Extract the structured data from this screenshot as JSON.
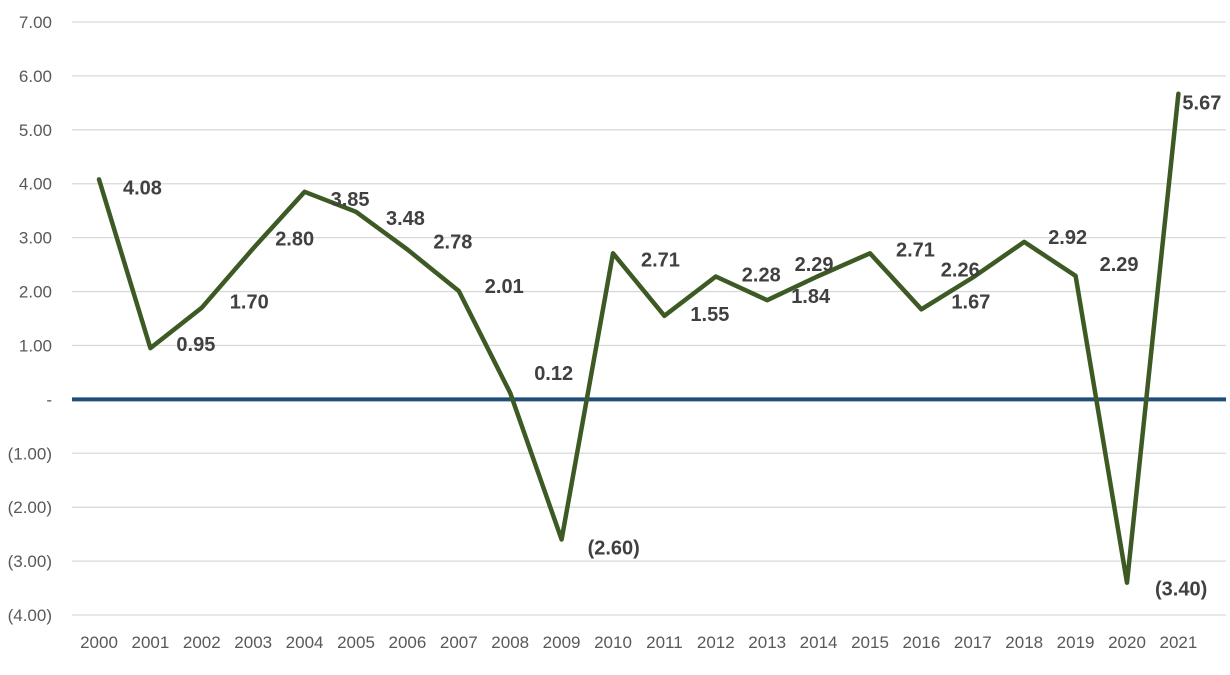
{
  "chart_data": {
    "type": "line",
    "title": "",
    "xlabel": "",
    "ylabel": "",
    "x": [
      "2000",
      "2001",
      "2002",
      "2003",
      "2004",
      "2005",
      "2006",
      "2007",
      "2008",
      "2009",
      "2010",
      "2011",
      "2012",
      "2013",
      "2014",
      "2015",
      "2016",
      "2017",
      "2018",
      "2019",
      "2020",
      "2021"
    ],
    "series": [
      {
        "values": [
          4.08,
          0.95,
          1.7,
          2.8,
          3.85,
          3.48,
          2.78,
          2.01,
          0.12,
          -2.6,
          2.71,
          1.55,
          2.28,
          1.84,
          2.29,
          2.71,
          1.67,
          2.26,
          2.92,
          2.29,
          -3.4,
          5.67
        ],
        "data_labels": [
          "4.08",
          "0.95",
          "1.70",
          "2.80",
          "3.85",
          "3.48",
          "2.78",
          "2.01",
          "0.12",
          "(2.60)",
          "2.71",
          "1.55",
          "2.28",
          "1.84",
          "2.29",
          "2.71",
          "1.67",
          "2.26",
          "2.92",
          "2.29",
          "(3.40)",
          "5.67"
        ],
        "color": "#3d5a25"
      }
    ],
    "ylim": [
      -4,
      7
    ],
    "y_ticks": [
      {
        "value": 7,
        "label": "7.00"
      },
      {
        "value": 6,
        "label": "6.00"
      },
      {
        "value": 5,
        "label": "5.00"
      },
      {
        "value": 4,
        "label": "4.00"
      },
      {
        "value": 3,
        "label": "3.00"
      },
      {
        "value": 2,
        "label": "2.00"
      },
      {
        "value": 1,
        "label": "1.00"
      },
      {
        "value": 0,
        "label": "-"
      },
      {
        "value": -1,
        "label": "(1.00)"
      },
      {
        "value": -2,
        "label": "(2.00)"
      },
      {
        "value": -3,
        "label": "(3.00)"
      },
      {
        "value": -4,
        "label": "(4.00)"
      }
    ],
    "zero_line_color": "#1f4e79",
    "grid": true,
    "legend": "none"
  }
}
